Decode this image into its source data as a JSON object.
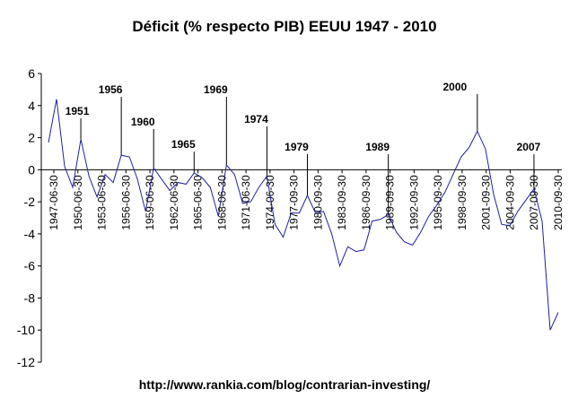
{
  "chart_data": {
    "type": "line",
    "title": "Déficit (% respecto PIB) EEUU 1947 - 2010",
    "footer": "http://www.rankia.com/blog/contrarian-investing/",
    "xlabel": "",
    "ylabel": "",
    "ylim": [
      -12,
      6
    ],
    "yticks": [
      6,
      4,
      2,
      0,
      -2,
      -4,
      -6,
      -8,
      -10,
      -12
    ],
    "grid": false,
    "legend": "none",
    "x_tick_labels": [
      "1947-06-30",
      "1950-06-30",
      "1953-06-30",
      "1956-06-30",
      "1959-06-30",
      "1962-06-30",
      "1965-06-30",
      "1968-06-30",
      "1971-06-30",
      "1974-06-30",
      "1977-09-30",
      "1980-09-30",
      "1983-09-30",
      "1986-09-30",
      "1989-09-30",
      "1992-09-30",
      "1995-09-30",
      "1998-09-30",
      "2001-09-30",
      "2004-09-30",
      "2007-09-30",
      "2010-09-30"
    ],
    "x": [
      1947,
      1948,
      1949,
      1950,
      1951,
      1952,
      1953,
      1954,
      1955,
      1956,
      1957,
      1958,
      1959,
      1960,
      1961,
      1962,
      1963,
      1964,
      1965,
      1966,
      1967,
      1968,
      1969,
      1970,
      1971,
      1972,
      1973,
      1974,
      1975,
      1976,
      1977,
      1978,
      1979,
      1980,
      1981,
      1982,
      1983,
      1984,
      1985,
      1986,
      1987,
      1988,
      1989,
      1990,
      1991,
      1992,
      1993,
      1994,
      1995,
      1996,
      1997,
      1998,
      1999,
      2000,
      2001,
      2002,
      2003,
      2004,
      2005,
      2006,
      2007,
      2008,
      2009,
      2010
    ],
    "values": [
      1.7,
      4.4,
      0.2,
      -1.1,
      1.9,
      -0.4,
      -1.7,
      -0.3,
      -0.8,
      0.9,
      0.8,
      -0.6,
      -2.6,
      0.1,
      -0.6,
      -1.3,
      -0.8,
      -0.9,
      -0.2,
      -0.5,
      -1.1,
      -2.9,
      0.3,
      -0.3,
      -2.1,
      -2.0,
      -1.1,
      -0.4,
      -3.4,
      -4.2,
      -2.7,
      -2.7,
      -1.6,
      -2.7,
      -2.6,
      -4.0,
      -6.0,
      -4.8,
      -5.1,
      -5.0,
      -3.2,
      -3.1,
      -2.8,
      -3.9,
      -4.5,
      -4.7,
      -3.9,
      -2.9,
      -2.2,
      -1.4,
      -0.3,
      0.8,
      1.4,
      2.4,
      1.3,
      -1.5,
      -3.4,
      -3.5,
      -2.6,
      -1.9,
      -1.2,
      -3.2,
      -10.0,
      -8.9
    ],
    "line_color": "#1f1f9f",
    "annotations": [
      {
        "label": "1951",
        "x": 1951
      },
      {
        "label": "1956",
        "x": 1956
      },
      {
        "label": "1960",
        "x": 1960
      },
      {
        "label": "1965",
        "x": 1965
      },
      {
        "label": "1969",
        "x": 1969
      },
      {
        "label": "1974",
        "x": 1974
      },
      {
        "label": "1979",
        "x": 1979
      },
      {
        "label": "1989",
        "x": 1989
      },
      {
        "label": "2000",
        "x": 2000
      },
      {
        "label": "2007",
        "x": 2007
      }
    ]
  }
}
